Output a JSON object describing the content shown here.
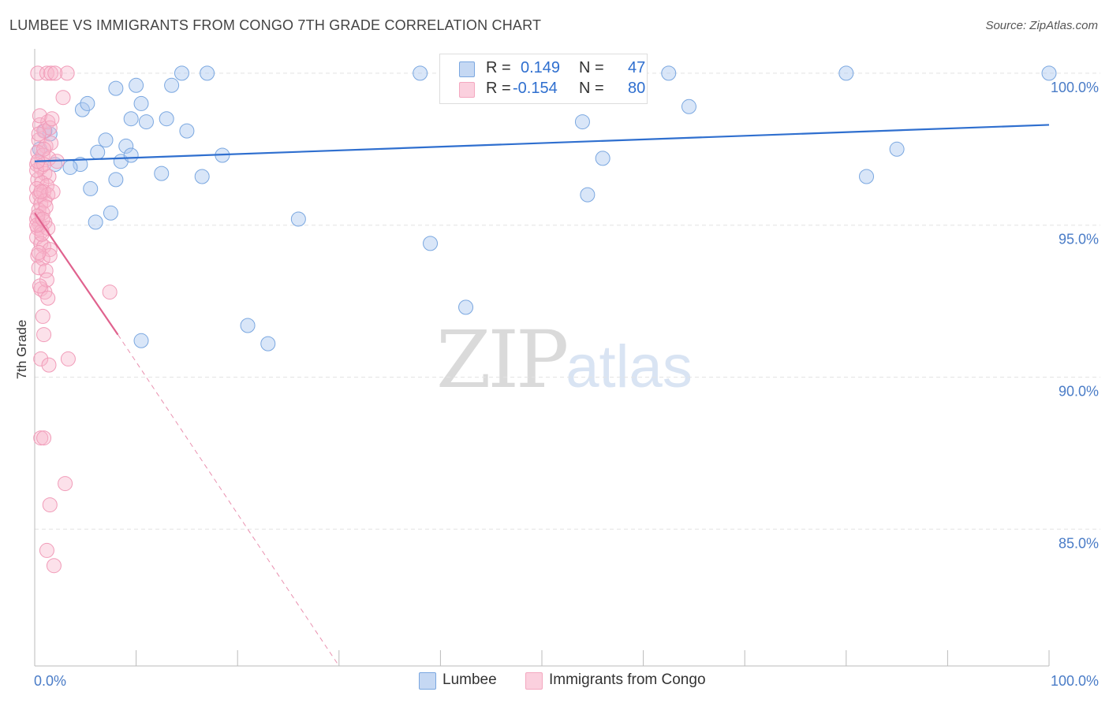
{
  "title": "LUMBEE VS IMMIGRANTS FROM CONGO 7TH GRADE CORRELATION CHART",
  "source": "Source: ZipAtlas.com",
  "watermark": {
    "zip": "ZIP",
    "atlas": "atlas"
  },
  "legend": {
    "series1": {
      "r_label": "R =",
      "r_value": "0.149",
      "n_label": "N =",
      "n_value": "47"
    },
    "series2": {
      "r_label": "R =",
      "r_value": "-0.154",
      "n_label": "N =",
      "n_value": "80"
    }
  },
  "chart_data": {
    "type": "scatter",
    "title": "LUMBEE VS IMMIGRANTS FROM CONGO 7TH GRADE CORRELATION CHART",
    "xlabel": "",
    "ylabel": "7th Grade",
    "xlim": [
      0,
      100
    ],
    "ylim": [
      80.5,
      100.8
    ],
    "x_tick_labels": [
      "0.0%",
      "100.0%"
    ],
    "y_ticks": [
      {
        "value": 100,
        "label": "100.0%"
      },
      {
        "value": 95,
        "label": "95.0%"
      },
      {
        "value": 90,
        "label": "90.0%"
      },
      {
        "value": 85,
        "label": "85.0%"
      }
    ],
    "grid": "horizontal dashed",
    "legend_placement": "top-center",
    "series": [
      {
        "name": "Lumbee",
        "color": "#7aa7e0",
        "line_color": "#2f6fcf",
        "trend": {
          "x0": 0,
          "y0": 97.1,
          "x1": 100,
          "y1": 98.3
        },
        "points": [
          [
            0.5,
            97.5
          ],
          [
            1.5,
            98.0
          ],
          [
            4.5,
            97.0
          ],
          [
            3.5,
            96.9
          ],
          [
            5.5,
            96.2
          ],
          [
            4.7,
            98.8
          ],
          [
            6.0,
            95.1
          ],
          [
            5.2,
            99.0
          ],
          [
            6.2,
            97.4
          ],
          [
            7.0,
            97.8
          ],
          [
            7.5,
            95.4
          ],
          [
            8.0,
            96.5
          ],
          [
            8.5,
            97.1
          ],
          [
            8.0,
            99.5
          ],
          [
            9.0,
            97.6
          ],
          [
            9.5,
            97.3
          ],
          [
            9.5,
            98.5
          ],
          [
            10.0,
            99.6
          ],
          [
            10.5,
            99.0
          ],
          [
            11.0,
            98.4
          ],
          [
            12.5,
            96.7
          ],
          [
            13.0,
            98.5
          ],
          [
            13.5,
            99.6
          ],
          [
            14.5,
            100.0
          ],
          [
            15.0,
            98.1
          ],
          [
            16.5,
            96.6
          ],
          [
            17.0,
            100.0
          ],
          [
            18.5,
            97.3
          ],
          [
            10.5,
            91.2
          ],
          [
            21.0,
            91.7
          ],
          [
            23.0,
            91.1
          ],
          [
            26.0,
            95.2
          ],
          [
            38.0,
            100.0
          ],
          [
            39.0,
            94.4
          ],
          [
            42.5,
            92.3
          ],
          [
            48.5,
            100.0
          ],
          [
            54.0,
            98.4
          ],
          [
            54.5,
            96.0
          ],
          [
            56.0,
            97.2
          ],
          [
            62.5,
            100.0
          ],
          [
            64.5,
            98.9
          ],
          [
            80.0,
            100.0
          ],
          [
            82.0,
            96.6
          ],
          [
            85.0,
            97.5
          ],
          [
            100.0,
            100.0
          ],
          [
            2.0,
            97.0
          ],
          [
            1.0,
            98.1
          ]
        ]
      },
      {
        "name": "Immigrants from Congo",
        "color": "#f4a8c0",
        "line_color": "#e0628e",
        "trend": {
          "x0": 0,
          "y0": 95.4,
          "x1": 8.2,
          "y1": 91.4
        },
        "trend_extension": {
          "x0": 8.2,
          "y0": 91.4,
          "x1": 30,
          "y1": 80.5
        },
        "points": [
          [
            0.3,
            100.0
          ],
          [
            1.2,
            100.0
          ],
          [
            1.6,
            100.0
          ],
          [
            3.2,
            100.0
          ],
          [
            2.8,
            99.2
          ],
          [
            0.5,
            98.3
          ],
          [
            0.9,
            98.1
          ],
          [
            1.3,
            98.4
          ],
          [
            1.5,
            98.2
          ],
          [
            0.4,
            97.8
          ],
          [
            1.1,
            97.6
          ],
          [
            1.6,
            97.7
          ],
          [
            0.3,
            97.4
          ],
          [
            0.8,
            97.3
          ],
          [
            1.4,
            97.2
          ],
          [
            0.2,
            97.0
          ],
          [
            0.6,
            96.9
          ],
          [
            1.0,
            96.7
          ],
          [
            1.4,
            96.6
          ],
          [
            0.3,
            96.5
          ],
          [
            0.7,
            96.4
          ],
          [
            1.2,
            96.3
          ],
          [
            0.2,
            96.2
          ],
          [
            0.5,
            96.0
          ],
          [
            0.9,
            96.1
          ],
          [
            1.3,
            96.0
          ],
          [
            0.2,
            95.9
          ],
          [
            0.6,
            95.7
          ],
          [
            1.0,
            95.8
          ],
          [
            0.4,
            95.5
          ],
          [
            0.8,
            95.4
          ],
          [
            0.2,
            95.2
          ],
          [
            0.5,
            95.0
          ],
          [
            1.0,
            95.1
          ],
          [
            0.3,
            94.9
          ],
          [
            0.7,
            94.8
          ],
          [
            1.3,
            94.9
          ],
          [
            0.2,
            94.6
          ],
          [
            0.6,
            94.4
          ],
          [
            0.9,
            94.3
          ],
          [
            1.5,
            94.2
          ],
          [
            0.3,
            94.0
          ],
          [
            0.8,
            93.9
          ],
          [
            1.5,
            94.0
          ],
          [
            0.4,
            93.6
          ],
          [
            1.1,
            93.5
          ],
          [
            0.6,
            92.9
          ],
          [
            1.0,
            92.8
          ],
          [
            1.3,
            92.6
          ],
          [
            0.8,
            92.0
          ],
          [
            0.9,
            91.4
          ],
          [
            0.6,
            90.6
          ],
          [
            1.4,
            90.4
          ],
          [
            3.3,
            90.6
          ],
          [
            7.4,
            92.8
          ],
          [
            0.6,
            88.0
          ],
          [
            0.9,
            88.0
          ],
          [
            3.0,
            86.5
          ],
          [
            1.5,
            85.8
          ],
          [
            1.2,
            84.3
          ],
          [
            1.9,
            83.8
          ],
          [
            0.5,
            98.6
          ],
          [
            1.7,
            98.5
          ],
          [
            0.4,
            98.0
          ],
          [
            0.9,
            97.5
          ],
          [
            0.2,
            96.8
          ],
          [
            0.6,
            96.1
          ],
          [
            1.1,
            95.6
          ],
          [
            0.3,
            95.3
          ],
          [
            0.7,
            94.7
          ],
          [
            0.4,
            94.1
          ],
          [
            1.2,
            93.2
          ],
          [
            0.5,
            93.0
          ],
          [
            0.9,
            97.0
          ],
          [
            0.3,
            97.1
          ],
          [
            1.8,
            96.1
          ],
          [
            2.2,
            97.1
          ],
          [
            0.2,
            95.0
          ],
          [
            0.8,
            95.2
          ],
          [
            2.0,
            100.0
          ]
        ]
      }
    ]
  }
}
